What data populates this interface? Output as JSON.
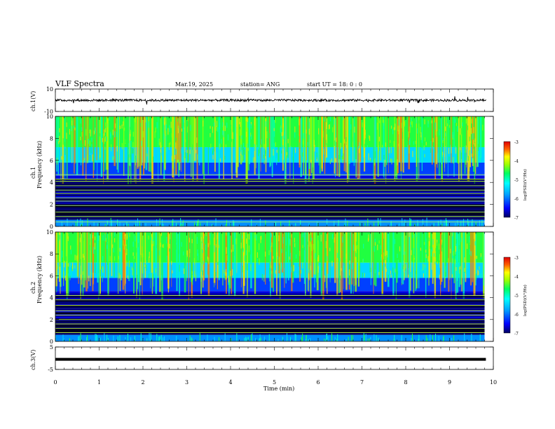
{
  "header": {
    "title": "VLF Spectra",
    "date": "Mar.19, 2025",
    "station": "station= ANG",
    "start": "start  UT =   18: 0  : 0"
  },
  "chart_data": [
    {
      "type": "line",
      "panel": "ch1-waveform",
      "ylabel": "ch.1(V)",
      "ylim": [
        -10,
        10
      ],
      "yticks": [
        "10",
        "-10"
      ],
      "xlim": [
        0,
        10
      ],
      "series": [
        {
          "values": [
            0,
            0,
            0,
            0,
            0,
            0,
            0,
            0,
            0,
            0
          ]
        }
      ]
    },
    {
      "type": "heatmap",
      "panel": "ch1-spectrogram",
      "ylabel": "ch.1\nFrequency (kHz)",
      "ylabel_lines": [
        "ch.1",
        "Frequency  (kHz)"
      ],
      "ylim": [
        0,
        10
      ],
      "yticks": [
        "0",
        "2",
        "4",
        "6",
        "8",
        "10"
      ],
      "xlim": [
        0,
        9.8
      ],
      "colorbar": {
        "label": "log(PSD)(V²/Hz)",
        "range": [
          -7,
          -3
        ],
        "ticks": [
          "-3",
          "-4",
          "-5",
          "-6",
          "-7"
        ]
      },
      "lines_khz": [
        0.4,
        0.9,
        1.3,
        1.9,
        2.3,
        2.6,
        3.0,
        3.3,
        3.7,
        4.1,
        4.3,
        4.7
      ]
    },
    {
      "type": "heatmap",
      "panel": "ch2-spectrogram",
      "ylabel_lines": [
        "ch.2",
        "Frequency  (kHz)"
      ],
      "ylim": [
        0,
        10
      ],
      "yticks": [
        "0",
        "2",
        "4",
        "6",
        "8",
        "10"
      ],
      "xlim": [
        0,
        9.8
      ],
      "colorbar": {
        "label": "log(PSD)(V²/Hz)",
        "range": [
          -7,
          -3
        ],
        "ticks": [
          "-3",
          "-4",
          "-5",
          "-6",
          "-7"
        ]
      },
      "lines_khz": [
        0.8,
        1.2,
        1.6,
        2.0,
        2.4,
        2.8,
        3.3,
        3.8,
        4.2
      ]
    },
    {
      "type": "line",
      "panel": "ch3-waveform",
      "ylabel": "ch.3(V)",
      "ylim": [
        -5,
        5
      ],
      "yticks": [
        "5",
        "-5"
      ],
      "xlim": [
        0,
        10
      ],
      "series": [
        {
          "values": [
            -0.5,
            -0.5,
            -0.5,
            -0.5,
            -0.5,
            -0.5,
            -0.5,
            -0.5,
            -0.5,
            -0.5
          ]
        }
      ]
    }
  ],
  "xaxis": {
    "label": "Time  (min)",
    "ticks": [
      "0",
      "1",
      "2",
      "3",
      "4",
      "5",
      "6",
      "7",
      "8",
      "9",
      "10"
    ],
    "range": [
      0,
      10
    ]
  },
  "colormap": [
    "#00008b",
    "#0000ff",
    "#0080ff",
    "#00ffff",
    "#00ff80",
    "#80ff00",
    "#ffff00",
    "#ff8000",
    "#ff0000",
    "#8b0000"
  ]
}
